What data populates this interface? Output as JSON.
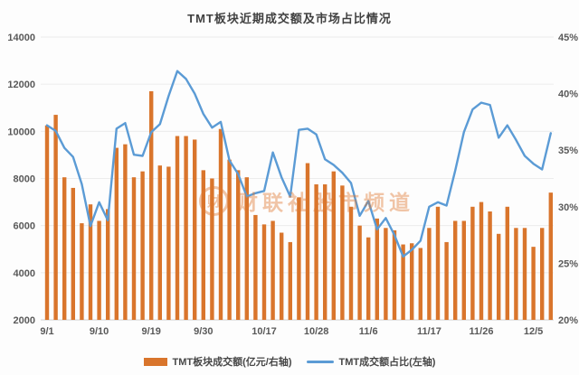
{
  "title": "TMT板块近期成交额及市场占比情况",
  "watermark": {
    "logo_char": "财",
    "text": "财联社股市频道"
  },
  "legend": {
    "bar_label": "TMT板块成交额(亿元/右轴)",
    "line_label": "TMT成交额占比(左轴)"
  },
  "colors": {
    "bar": "#d9752c",
    "line": "#5b9bd5",
    "grid": "#ececec",
    "baseline": "#d0d0d0",
    "axis_text": "#595959",
    "title_text": "#404040"
  },
  "chart_data": {
    "type": "combo",
    "title": "TMT板块近期成交额及市场占比情况",
    "series": [
      {
        "name": "TMT板块成交额(亿元/右轴)",
        "type": "bar",
        "unit": "亿元",
        "values": [
          10250,
          10700,
          8050,
          7600,
          6100,
          6900,
          6200,
          6700,
          9300,
          9450,
          8050,
          8300,
          11700,
          8550,
          8500,
          9800,
          9800,
          9650,
          8350,
          8000,
          10100,
          8800,
          8350,
          8050,
          6450,
          6050,
          6200,
          5700,
          5300,
          7200,
          8650,
          7750,
          7750,
          8300,
          7700,
          6800,
          6000,
          5500,
          6300,
          5900,
          5800,
          5200,
          5250,
          5050,
          5900,
          6800,
          5300,
          6200,
          6200,
          6800,
          7000,
          6600,
          5650,
          6800,
          5900,
          5900,
          5100,
          5900,
          7400
        ]
      },
      {
        "name": "TMT成交额占比(左轴)",
        "type": "line",
        "unit": "%",
        "values": [
          37.2,
          36.7,
          35.2,
          34.4,
          32.0,
          28.3,
          30.4,
          28.8,
          36.9,
          37.4,
          34.6,
          34.5,
          36.6,
          37.3,
          39.8,
          42.0,
          41.3,
          40.0,
          38.2,
          37.0,
          37.5,
          34.1,
          32.9,
          30.9,
          31.2,
          31.4,
          34.8,
          32.6,
          30.9,
          36.8,
          36.9,
          36.4,
          34.2,
          33.7,
          33.0,
          32.1,
          29.2,
          30.5,
          28.0,
          29.0,
          27.5,
          25.6,
          26.2,
          27.0,
          30.0,
          30.4,
          30.1,
          33.2,
          36.6,
          38.6,
          39.2,
          39.0,
          36.1,
          37.2,
          35.9,
          34.5,
          33.8,
          33.3,
          36.5
        ]
      }
    ],
    "x_tick_labels": [
      "9/1",
      "9/10",
      "9/19",
      "9/30",
      "10/17",
      "10/28",
      "11/6",
      "11/17",
      "11/26",
      "12/5"
    ],
    "x_tick_indices": [
      0,
      6,
      12,
      18,
      25,
      31,
      37,
      44,
      50,
      56
    ],
    "left_axis": {
      "min": 2000,
      "max": 14000,
      "step": 2000,
      "tick_labels": [
        "2000",
        "4000",
        "6000",
        "8000",
        "10000",
        "12000",
        "14000"
      ]
    },
    "right_axis": {
      "min": 20,
      "max": 45,
      "step": 5,
      "tick_labels": [
        "20%",
        "25%",
        "30%",
        "35%",
        "40%",
        "45%"
      ]
    },
    "grid": true,
    "legend_position": "bottom"
  }
}
